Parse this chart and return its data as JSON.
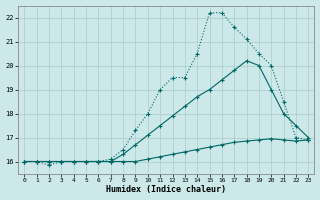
{
  "xlabel": "Humidex (Indice chaleur)",
  "x": [
    0,
    1,
    2,
    3,
    4,
    5,
    6,
    7,
    8,
    9,
    10,
    11,
    12,
    13,
    14,
    15,
    16,
    17,
    18,
    19,
    20,
    21,
    22,
    23
  ],
  "line1_dotted": [
    16.0,
    16.0,
    15.85,
    16.0,
    16.0,
    16.0,
    16.0,
    16.1,
    16.5,
    17.3,
    18.0,
    19.0,
    19.5,
    19.5,
    20.5,
    22.2,
    22.2,
    21.6,
    21.1,
    20.5,
    20.0,
    18.5,
    17.0,
    16.9
  ],
  "line2_diag": [
    16.0,
    16.0,
    16.0,
    16.0,
    16.0,
    16.0,
    16.0,
    16.0,
    16.3,
    16.7,
    17.1,
    17.5,
    17.9,
    18.3,
    18.7,
    19.0,
    19.4,
    19.8,
    20.2,
    20.0,
    19.0,
    18.0,
    17.5,
    17.0
  ],
  "line3_flat": [
    16.0,
    16.0,
    16.0,
    16.0,
    16.0,
    16.0,
    16.0,
    16.0,
    16.0,
    16.0,
    16.1,
    16.2,
    16.3,
    16.4,
    16.5,
    16.6,
    16.7,
    16.8,
    16.85,
    16.9,
    16.95,
    16.9,
    16.85,
    16.9
  ],
  "bg_color": "#cce8e8",
  "grid_color": "#aacccc",
  "line_color": "#006666",
  "ylim": [
    15.5,
    22.5
  ],
  "xlim": [
    -0.5,
    23.5
  ],
  "yticks": [
    16,
    17,
    18,
    19,
    20,
    21,
    22
  ],
  "xticks": [
    0,
    1,
    2,
    3,
    4,
    5,
    6,
    7,
    8,
    9,
    10,
    11,
    12,
    13,
    14,
    15,
    16,
    17,
    18,
    19,
    20,
    21,
    22,
    23
  ]
}
